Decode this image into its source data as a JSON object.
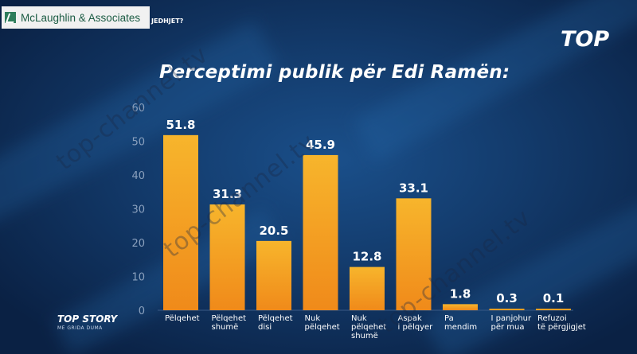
{
  "brand": {
    "name": "McLaughlin & Associates"
  },
  "header": {
    "question_fragment": "JEDHJET?"
  },
  "channel_logo_text": "TOP",
  "watermark_text": "top-channel.tv",
  "show": {
    "name": "TOP STORY",
    "host": "ME GRIDA DUMA"
  },
  "chart_data": {
    "type": "bar",
    "title": "Perceptimi publik për Edi Ramën:",
    "categories": [
      [
        "Pëlqehet"
      ],
      [
        "Pëlqehet",
        "shumë"
      ],
      [
        "Pëlqehet",
        "disi"
      ],
      [
        "Nuk",
        "pëlqehet"
      ],
      [
        "Nuk",
        "pëlqehet",
        "shumë"
      ],
      [
        "Aspak",
        "i pëlqyer"
      ],
      [
        "Pa",
        "mendim"
      ],
      [
        "I panjohur",
        "për mua"
      ],
      [
        "Refuzoi",
        "të përgjigjet"
      ]
    ],
    "values": [
      51.8,
      31.3,
      20.5,
      45.9,
      12.8,
      33.1,
      1.8,
      0.3,
      0.1
    ],
    "yticks": [
      0,
      10,
      20,
      30,
      40,
      50,
      60
    ],
    "ylim": [
      0,
      60
    ],
    "grid": false,
    "bar_color_top": "#f7b52c",
    "bar_color_bottom": "#f08a1a"
  }
}
